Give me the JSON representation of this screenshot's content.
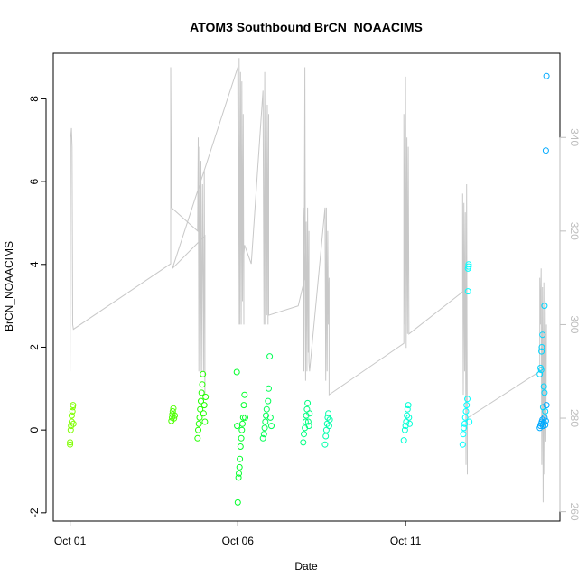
{
  "chart_data": {
    "type": "scatter",
    "title": "ATOM3 Southbound BrCN_NOAACIMS",
    "xlabel": "Date",
    "ylabel": "BrCN_NOAACIMS",
    "x_ticks": [
      "Oct 01",
      "Oct 06",
      "Oct 11"
    ],
    "x_tick_days": [
      0,
      5,
      10
    ],
    "xlim_days": [
      -0.5,
      14.6
    ],
    "ylim": [
      -2.2,
      9.1
    ],
    "y_ticks": [
      -2,
      0,
      2,
      4,
      6,
      8
    ],
    "y2lim": [
      258,
      358
    ],
    "y2_ticks": [
      260,
      280,
      300,
      320,
      340
    ],
    "colors": {
      "axis": "#000000",
      "secondary_axis": "#bebebe",
      "line": "#c8c8c8"
    },
    "series": [
      {
        "kind": "points",
        "color": "#7fff00",
        "points": [
          [
            0.0,
            -0.35
          ],
          [
            0.0,
            -0.3
          ],
          [
            0.02,
            0.0
          ],
          [
            0.03,
            0.1
          ],
          [
            0.05,
            0.2
          ],
          [
            0.05,
            0.35
          ],
          [
            0.07,
            0.45
          ],
          [
            0.08,
            0.55
          ],
          [
            0.09,
            0.6
          ],
          [
            0.1,
            0.15
          ]
        ]
      },
      {
        "kind": "points",
        "color": "#4cff00",
        "points": [
          [
            3.02,
            0.22
          ],
          [
            3.04,
            0.3
          ],
          [
            3.05,
            0.38
          ],
          [
            3.06,
            0.45
          ],
          [
            3.08,
            0.52
          ],
          [
            3.1,
            0.28
          ],
          [
            3.12,
            0.35
          ]
        ]
      },
      {
        "kind": "points",
        "color": "#21ff00",
        "points": [
          [
            3.8,
            -0.2
          ],
          [
            3.82,
            0.0
          ],
          [
            3.84,
            0.15
          ],
          [
            3.86,
            0.3
          ],
          [
            3.88,
            0.5
          ],
          [
            3.9,
            0.7
          ],
          [
            3.92,
            0.9
          ],
          [
            3.94,
            1.1
          ],
          [
            3.96,
            1.35
          ],
          [
            3.98,
            0.4
          ],
          [
            4.0,
            0.6
          ],
          [
            4.02,
            0.2
          ],
          [
            4.04,
            0.8
          ]
        ]
      },
      {
        "kind": "points",
        "color": "#00ff2a",
        "points": [
          [
            5.0,
            -1.75
          ],
          [
            5.02,
            -1.15
          ],
          [
            5.03,
            -1.05
          ],
          [
            5.05,
            -0.9
          ],
          [
            5.06,
            -0.7
          ],
          [
            5.08,
            -0.4
          ],
          [
            5.1,
            -0.2
          ],
          [
            5.12,
            0.0
          ],
          [
            5.14,
            0.15
          ],
          [
            5.16,
            0.3
          ],
          [
            5.18,
            0.6
          ],
          [
            5.2,
            0.85
          ],
          [
            5.22,
            0.3
          ],
          [
            4.97,
            1.4
          ],
          [
            4.98,
            0.1
          ]
        ]
      },
      {
        "kind": "points",
        "color": "#00ff55",
        "points": [
          [
            5.75,
            -0.2
          ],
          [
            5.78,
            -0.1
          ],
          [
            5.8,
            0.05
          ],
          [
            5.82,
            0.2
          ],
          [
            5.84,
            0.35
          ],
          [
            5.86,
            0.5
          ],
          [
            5.9,
            0.7
          ],
          [
            5.92,
            1.0
          ],
          [
            5.95,
            1.78
          ],
          [
            5.97,
            0.3
          ],
          [
            6.0,
            0.1
          ]
        ]
      },
      {
        "kind": "points",
        "color": "#00ff80",
        "points": [
          [
            6.95,
            -0.3
          ],
          [
            6.97,
            -0.1
          ],
          [
            7.0,
            0.05
          ],
          [
            7.02,
            0.2
          ],
          [
            7.04,
            0.35
          ],
          [
            7.06,
            0.5
          ],
          [
            7.08,
            0.65
          ],
          [
            7.1,
            0.2
          ],
          [
            7.12,
            0.1
          ],
          [
            7.14,
            0.4
          ]
        ]
      },
      {
        "kind": "points",
        "color": "#00ffaa",
        "points": [
          [
            7.6,
            -0.35
          ],
          [
            7.62,
            -0.15
          ],
          [
            7.64,
            0.0
          ],
          [
            7.66,
            0.15
          ],
          [
            7.68,
            0.3
          ],
          [
            7.7,
            0.4
          ],
          [
            7.72,
            0.1
          ],
          [
            7.74,
            0.25
          ]
        ]
      },
      {
        "kind": "points",
        "color": "#00ffd4",
        "points": [
          [
            9.95,
            -0.25
          ],
          [
            9.98,
            0.0
          ],
          [
            10.0,
            0.1
          ],
          [
            10.02,
            0.2
          ],
          [
            10.04,
            0.35
          ],
          [
            10.06,
            0.5
          ],
          [
            10.08,
            0.6
          ],
          [
            10.1,
            0.3
          ],
          [
            10.12,
            0.15
          ]
        ]
      },
      {
        "kind": "points",
        "color": "#00ffff",
        "points": [
          [
            11.7,
            -0.35
          ],
          [
            11.72,
            -0.1
          ],
          [
            11.74,
            0.05
          ],
          [
            11.76,
            0.15
          ],
          [
            11.78,
            0.3
          ],
          [
            11.8,
            0.45
          ],
          [
            11.82,
            0.6
          ],
          [
            11.84,
            0.75
          ],
          [
            11.86,
            3.35
          ],
          [
            11.86,
            3.9
          ],
          [
            11.88,
            3.95
          ],
          [
            11.88,
            4.0
          ],
          [
            11.9,
            0.2
          ]
        ]
      },
      {
        "kind": "points",
        "color": "#00d5ff",
        "points": [
          [
            14.0,
            1.35
          ],
          [
            14.02,
            1.5
          ],
          [
            14.04,
            1.45
          ],
          [
            14.05,
            1.9
          ],
          [
            14.06,
            2.0
          ],
          [
            14.08,
            2.3
          ],
          [
            14.1,
            0.55
          ],
          [
            14.12,
            1.05
          ],
          [
            14.14,
            0.9
          ],
          [
            14.14,
            3.0
          ],
          [
            14.16,
            0.45
          ]
        ]
      },
      {
        "kind": "points",
        "color": "#00aaff",
        "points": [
          [
            14.0,
            0.05
          ],
          [
            14.02,
            0.1
          ],
          [
            14.04,
            0.15
          ],
          [
            14.06,
            0.2
          ],
          [
            14.08,
            0.25
          ],
          [
            14.1,
            0.1
          ],
          [
            14.12,
            0.18
          ],
          [
            14.14,
            0.3
          ],
          [
            14.16,
            0.12
          ],
          [
            14.18,
            0.22
          ],
          [
            14.2,
            0.6
          ],
          [
            14.18,
            6.75
          ],
          [
            14.2,
            8.55
          ]
        ]
      },
      {
        "kind": "line",
        "color": "#c8c8c8",
        "axis": "secondary",
        "points": [
          [
            0.0,
            295
          ],
          [
            0.0,
            290
          ],
          [
            0.02,
            340
          ],
          [
            0.04,
            342
          ],
          [
            0.06,
            338
          ],
          [
            0.08,
            300
          ],
          [
            0.1,
            299
          ],
          [
            3.0,
            313
          ],
          [
            3.0,
            355
          ],
          [
            3.02,
            328
          ],
          [
            3.02,
            325
          ],
          [
            3.8,
            320
          ],
          [
            3.82,
            340
          ],
          [
            3.84,
            290
          ],
          [
            3.86,
            338
          ],
          [
            3.88,
            290
          ],
          [
            3.9,
            335
          ],
          [
            3.92,
            290
          ],
          [
            3.95,
            330
          ],
          [
            3.98,
            290
          ],
          [
            4.0,
            333
          ],
          [
            4.02,
            285
          ],
          [
            4.02,
            319
          ],
          [
            3.05,
            312
          ],
          [
            5.0,
            355
          ],
          [
            5.02,
            300
          ],
          [
            5.04,
            357
          ],
          [
            5.06,
            300
          ],
          [
            5.08,
            354
          ],
          [
            5.1,
            300
          ],
          [
            5.12,
            352
          ],
          [
            5.14,
            305
          ],
          [
            5.16,
            345
          ],
          [
            5.18,
            300
          ],
          [
            5.18,
            315
          ],
          [
            5.2,
            317
          ],
          [
            5.4,
            313
          ],
          [
            5.75,
            350
          ],
          [
            5.78,
            300
          ],
          [
            5.8,
            354
          ],
          [
            5.82,
            300
          ],
          [
            5.84,
            350
          ],
          [
            5.86,
            302
          ],
          [
            5.88,
            347
          ],
          [
            5.9,
            300
          ],
          [
            5.92,
            345
          ],
          [
            5.92,
            302
          ],
          [
            6.8,
            304
          ],
          [
            7.0,
            310
          ],
          [
            6.95,
            325
          ],
          [
            6.97,
            290
          ],
          [
            7.0,
            355
          ],
          [
            7.02,
            288
          ],
          [
            7.04,
            322
          ],
          [
            7.06,
            290
          ],
          [
            7.08,
            325
          ],
          [
            7.1,
            294
          ],
          [
            7.12,
            320
          ],
          [
            7.12,
            292
          ],
          [
            7.14,
            290
          ],
          [
            7.6,
            325
          ],
          [
            7.62,
            288
          ],
          [
            7.64,
            325
          ],
          [
            7.66,
            290
          ],
          [
            7.68,
            320
          ],
          [
            7.7,
            300
          ],
          [
            7.72,
            310
          ],
          [
            7.72,
            285
          ],
          [
            9.95,
            296
          ],
          [
            9.95,
            345
          ],
          [
            9.98,
            300
          ],
          [
            10.0,
            353
          ],
          [
            10.02,
            295
          ],
          [
            10.04,
            340
          ],
          [
            10.06,
            298
          ],
          [
            10.08,
            338
          ],
          [
            10.1,
            300
          ],
          [
            10.1,
            298
          ],
          [
            11.7,
            307
          ],
          [
            11.7,
            328
          ],
          [
            11.72,
            285
          ],
          [
            11.74,
            326
          ],
          [
            11.76,
            290
          ],
          [
            11.78,
            324
          ],
          [
            11.8,
            270
          ],
          [
            11.82,
            330
          ],
          [
            11.84,
            268
          ],
          [
            11.84,
            280
          ],
          [
            14.0,
            290
          ],
          [
            14.0,
            310
          ],
          [
            14.02,
            300
          ],
          [
            14.04,
            312
          ],
          [
            14.06,
            270
          ],
          [
            14.08,
            308
          ],
          [
            14.1,
            262
          ],
          [
            14.12,
            309
          ],
          [
            14.14,
            268
          ],
          [
            14.16,
            305
          ],
          [
            14.18,
            275
          ],
          [
            14.2,
            300
          ]
        ]
      }
    ]
  }
}
